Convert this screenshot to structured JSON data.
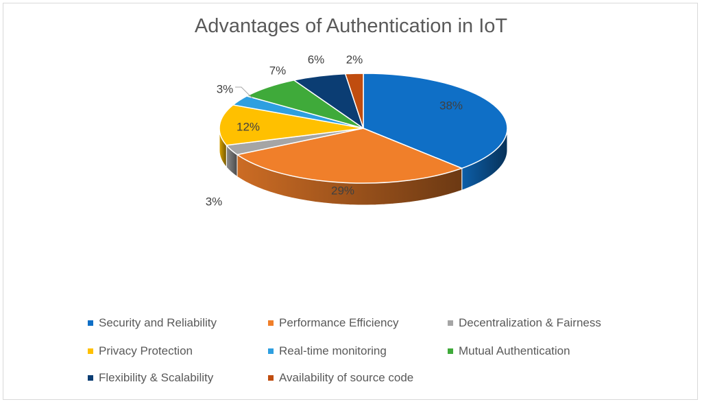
{
  "chart_data": {
    "type": "pie",
    "title": "Advantages of Authentication in IoT",
    "categories": [
      "Security and Reliability",
      "Performance Efficiency",
      "Decentralization & Fairness",
      "Privacy Protection",
      "Real-time monitoring",
      "Mutual Authentication",
      "Flexibility & Scalability",
      "Availability of source code"
    ],
    "values": [
      38,
      29,
      3,
      12,
      3,
      7,
      6,
      2
    ],
    "data_labels": [
      "38%",
      "29%",
      "3%",
      "12%",
      "3%",
      "7%",
      "6%",
      "2%"
    ],
    "colors": [
      "#0F6FC6",
      "#F07F2A",
      "#A5A5A5",
      "#FFC000",
      "#2E9FE0",
      "#3FAA3A",
      "#0B3D73",
      "#C04D0F"
    ],
    "style": "3d",
    "legend_position": "bottom"
  }
}
